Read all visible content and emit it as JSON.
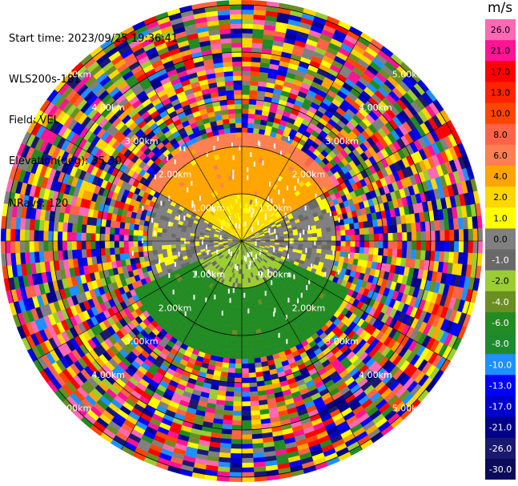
{
  "info": {
    "start_time": "Start time: 2023/09/25 19:36:41",
    "instrument": "WLS200s-181",
    "field": "Field: VEL",
    "elevation": "Elevation(deg): 35.30",
    "nrays": "NRays: 120"
  },
  "colorbar": {
    "title": "m/s",
    "ticks": [
      "26.0",
      "21.0",
      "17.0",
      "13.0",
      "10.0",
      "8.0",
      "6.0",
      "4.0",
      "2.0",
      "1.0",
      "0.0",
      "-1.0",
      "-2.0",
      "-4.0",
      "-6.0",
      "-8.0",
      "-10.0",
      "-13.0",
      "-17.0",
      "-21.0",
      "-26.0",
      "-30.0"
    ],
    "colors": [
      "#ff69b4",
      "#ff1493",
      "#ff0000",
      "#ff2400",
      "#ff4500",
      "#ff6347",
      "#ff7f50",
      "#ffa500",
      "#ffd700",
      "#ffff00",
      "#808080",
      "#696969",
      "#9acd32",
      "#6b8e23",
      "#228b22",
      "#1e8a2e",
      "#1e90ff",
      "#0000ff",
      "#0000cd",
      "#00008b",
      "#191970",
      "#0b0b5a"
    ]
  },
  "chart_data": {
    "type": "ppi",
    "field": "VEL",
    "units": "m/s",
    "nrays": 120,
    "elevation_deg": 35.3,
    "range_rings_km": [
      1.0,
      2.0,
      3.0,
      4.0,
      5.0
    ],
    "range_ring_labels": [
      "1.00km",
      "2.00km",
      "3.00km",
      "4.00km",
      "5.00km"
    ],
    "max_range_km": 5.1,
    "color_levels": [
      -30,
      -26,
      -21,
      -17,
      -13,
      -10,
      -8,
      -6,
      -4,
      -2,
      -1,
      0,
      1,
      2,
      4,
      6,
      8,
      10,
      13,
      17,
      21,
      26
    ],
    "regions": [
      {
        "range_km": [
          0.0,
          1.0
        ],
        "sector": "north",
        "velocity_ms": 2.0
      },
      {
        "range_km": [
          1.0,
          2.0
        ],
        "sector": "north",
        "velocity_ms": 4.0
      },
      {
        "range_km": [
          2.0,
          2.3
        ],
        "sector": "north",
        "velocity_ms": 6.0
      },
      {
        "range_km": [
          0.0,
          2.0
        ],
        "sector": "east",
        "velocity_ms": 0.0
      },
      {
        "range_km": [
          0.0,
          1.0
        ],
        "sector": "south",
        "velocity_ms": -2.0
      },
      {
        "range_km": [
          1.0,
          2.5
        ],
        "sector": "south",
        "velocity_ms": -6.0
      },
      {
        "range_km": [
          0.0,
          2.0
        ],
        "sector": "west",
        "velocity_ms": 0.0
      },
      {
        "range_km": [
          2.3,
          5.1
        ],
        "sector": "all",
        "velocity_ms": "noise"
      }
    ]
  }
}
